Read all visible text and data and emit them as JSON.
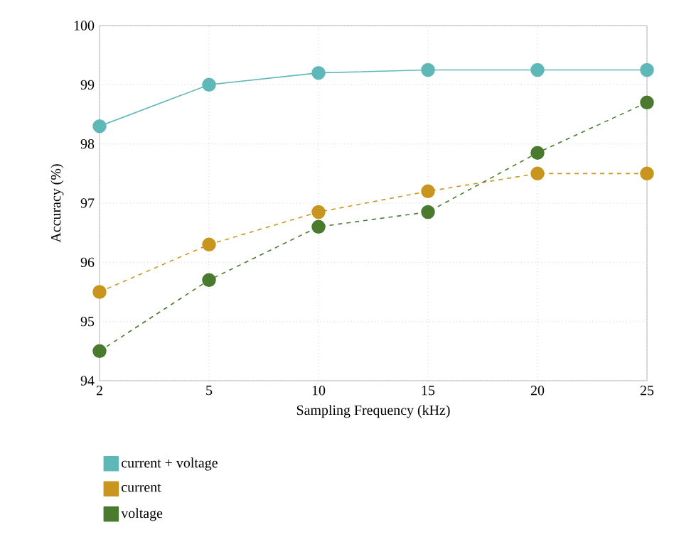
{
  "chart_data": {
    "type": "line",
    "xlabel": "Sampling Frequency (kHz)",
    "ylabel": "Accuracy (%)",
    "categories": [
      "2",
      "5",
      "10",
      "15",
      "20",
      "25"
    ],
    "series": [
      {
        "name": "current + voltage",
        "color": "#5fb8b8",
        "line_style": "solid",
        "values": [
          98.3,
          99.0,
          99.2,
          99.25,
          99.25,
          99.25
        ]
      },
      {
        "name": "current",
        "color": "#c8961e",
        "line_style": "dashed",
        "values": [
          95.5,
          96.3,
          96.85,
          97.2,
          97.5,
          97.5
        ]
      },
      {
        "name": "voltage",
        "color": "#4a7a2e",
        "line_style": "dashed",
        "values": [
          94.5,
          95.7,
          96.6,
          96.85,
          97.85,
          98.7
        ]
      }
    ],
    "ylim": [
      94,
      100
    ],
    "yticks": [
      94,
      95,
      96,
      97,
      98,
      99,
      100
    ],
    "grid": true,
    "legend": "bottom",
    "marker": "circle"
  }
}
